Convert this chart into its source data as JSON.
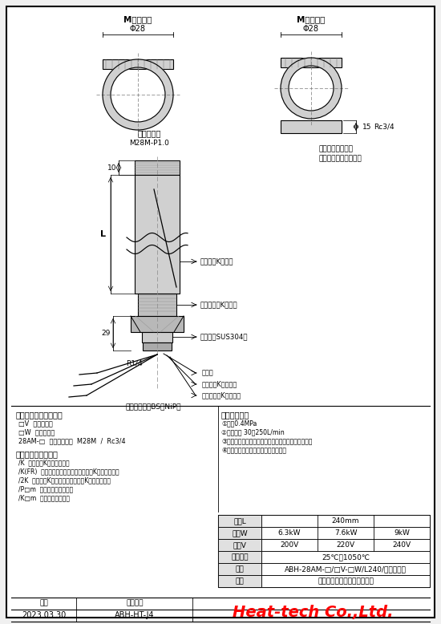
{
  "bg_color": "#f0f0f0",
  "left_section_title": "【発注時の仕様指定】",
  "left_spec_lines": [
    "□V  電圧の指定",
    "□W  電力の指定",
    "28AM-□  吹出口の指定  M28M  /  Rc3/4"
  ],
  "option_title": "【オプション対応】",
  "option_lines": [
    "/K  熱風温度K熱電対の追加",
    "/K(FR)  フレキシブルロボットケーブルK熱電対の追加",
    "/2K  熱風温度K熱電対と発熱体温度K熱電対の追加",
    "/P□m  電源線の長さの指定",
    "/K□m  熱電対線長の指定"
  ],
  "notes_title": "【注意事項】",
  "notes_lines": [
    "①考入0.4MPa",
    "②推奨流量 30～250L/min",
    "③供給気体はオイルミスト、水溟を除去して下さい。",
    "④低温気体を供給せずに加熱すると、"
  ],
  "table_header_col": "管長L",
  "table_header_val": "240mm",
  "table_rows": [
    [
      "電力W",
      "6.3kW",
      "7.6kW",
      "9kW"
    ],
    [
      "電圧V",
      "200V",
      "220V",
      "240V"
    ],
    [
      "熱風温度",
      "25℃～1050℃"
    ],
    [
      "型式",
      "ABH-28AM-□/□V-□W/L240/オプション"
    ],
    [
      "品名",
      "高温用高出力型熱風ヒーター"
    ]
  ],
  "footer_date_label": "日付",
  "footer_drawing_label": "図面番号",
  "footer_date": "2023.03.30",
  "footer_drawing": "ABH-HT-J4",
  "footer_company": "Heat-tech Co.,Ltd.",
  "m_outer": "M型外ネジ",
  "m_inner": "M型内ネジ",
  "phi28": "Φ28",
  "outlet_label": "熱風吹出口",
  "m28m_label": "M28M-P1.0",
  "dim_10": "10",
  "dim_15": "15",
  "rc34": "Rc3/4",
  "note_tip_line1": "先端の継手金具は",
  "note_tip_line2": "特注で作成数します。",
  "label_L": "L",
  "label_29": "29",
  "label_R14": "R1/4",
  "hotair_tc": "熱風温度K熱電対",
  "heat_tc": "発熱体温度K熱電対",
  "protection_tube": "保護管（SUS304）",
  "power_line": "電源線",
  "hotair_tc_line": "熱風温度K熱電対線",
  "heat_tc_line": "発熱体温度K熱電対線",
  "gas_inlet": "気体供給口（BS・NiP）"
}
